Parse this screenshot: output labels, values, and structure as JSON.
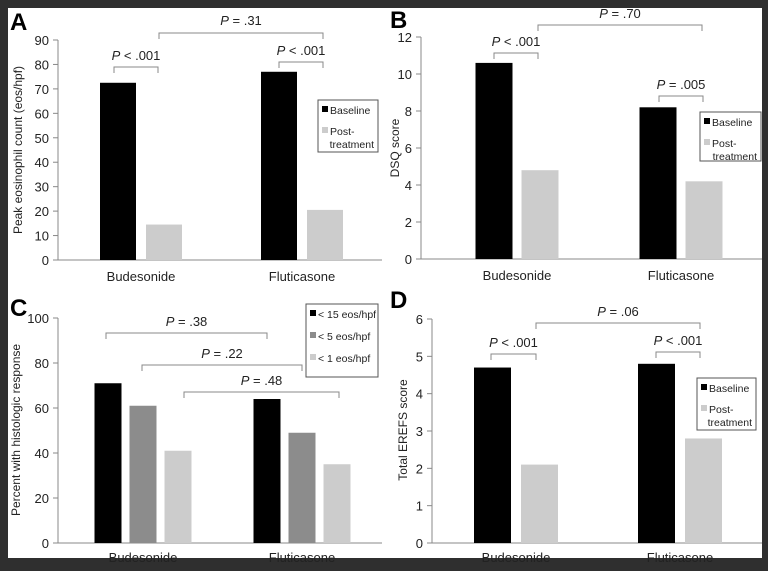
{
  "chart_data": [
    {
      "panel": "A",
      "type": "bar",
      "categories": [
        "Budesonide",
        "Fluticasone"
      ],
      "ylabel": "Peak eosinophil count (eos/hpf)",
      "ylim": [
        0,
        90
      ],
      "yticks": [
        0,
        10,
        20,
        30,
        40,
        50,
        60,
        70,
        80,
        90
      ],
      "series": [
        {
          "name": "Baseline",
          "color": "#000000",
          "values": [
            72.5,
            77
          ]
        },
        {
          "name": "Post-treatment",
          "color": "#cccccc",
          "values": [
            14.5,
            20.5
          ]
        }
      ],
      "legend": [
        "Baseline",
        "Post-\ntreatment"
      ],
      "annotations": [
        "P < .001",
        "P = .31",
        "P < .001"
      ]
    },
    {
      "panel": "B",
      "type": "bar",
      "categories": [
        "Budesonide",
        "Fluticasone"
      ],
      "ylabel": "DSQ score",
      "ylim": [
        0,
        12
      ],
      "yticks": [
        0,
        2,
        4,
        6,
        8,
        10,
        12
      ],
      "series": [
        {
          "name": "Baseline",
          "color": "#000000",
          "values": [
            10.6,
            8.2
          ]
        },
        {
          "name": "Post-treatment",
          "color": "#cccccc",
          "values": [
            4.8,
            4.2
          ]
        }
      ],
      "legend": [
        "Baseline",
        "Post-\ntreatment"
      ],
      "annotations": [
        "P < .001",
        "P = .70",
        "P = .005"
      ]
    },
    {
      "panel": "C",
      "type": "bar",
      "categories": [
        "Budesonide",
        "Fluticasone"
      ],
      "ylabel": "Percent with histologic response",
      "ylim": [
        0,
        100
      ],
      "yticks": [
        0,
        20,
        40,
        60,
        80,
        100
      ],
      "series": [
        {
          "name": "< 15 eos/hpf",
          "color": "#000000",
          "values": [
            71,
            64
          ]
        },
        {
          "name": "< 5 eos/hpf",
          "color": "#8c8c8c",
          "values": [
            61,
            49
          ]
        },
        {
          "name": "< 1 eos/hpf",
          "color": "#cccccc",
          "values": [
            41,
            35
          ]
        }
      ],
      "legend": [
        "< 15 eos/hpf",
        "< 5 eos/hpf",
        "< 1 eos/hpf"
      ],
      "annotations": [
        "P = .38",
        "P = .22",
        "P = .48"
      ]
    },
    {
      "panel": "D",
      "type": "bar",
      "categories": [
        "Budesonide",
        "Fluticasone"
      ],
      "ylabel": "Total EREFS score",
      "ylim": [
        0,
        6
      ],
      "yticks": [
        0,
        1,
        2,
        3,
        4,
        5,
        6
      ],
      "series": [
        {
          "name": "Baseline",
          "color": "#000000",
          "values": [
            4.7,
            4.8
          ]
        },
        {
          "name": "Post-treatment",
          "color": "#cccccc",
          "values": [
            2.1,
            2.8
          ]
        }
      ],
      "legend": [
        "Baseline",
        "Post-\ntreatment"
      ],
      "annotations": [
        "P < .001",
        "P = .06",
        "P < .001"
      ]
    }
  ]
}
